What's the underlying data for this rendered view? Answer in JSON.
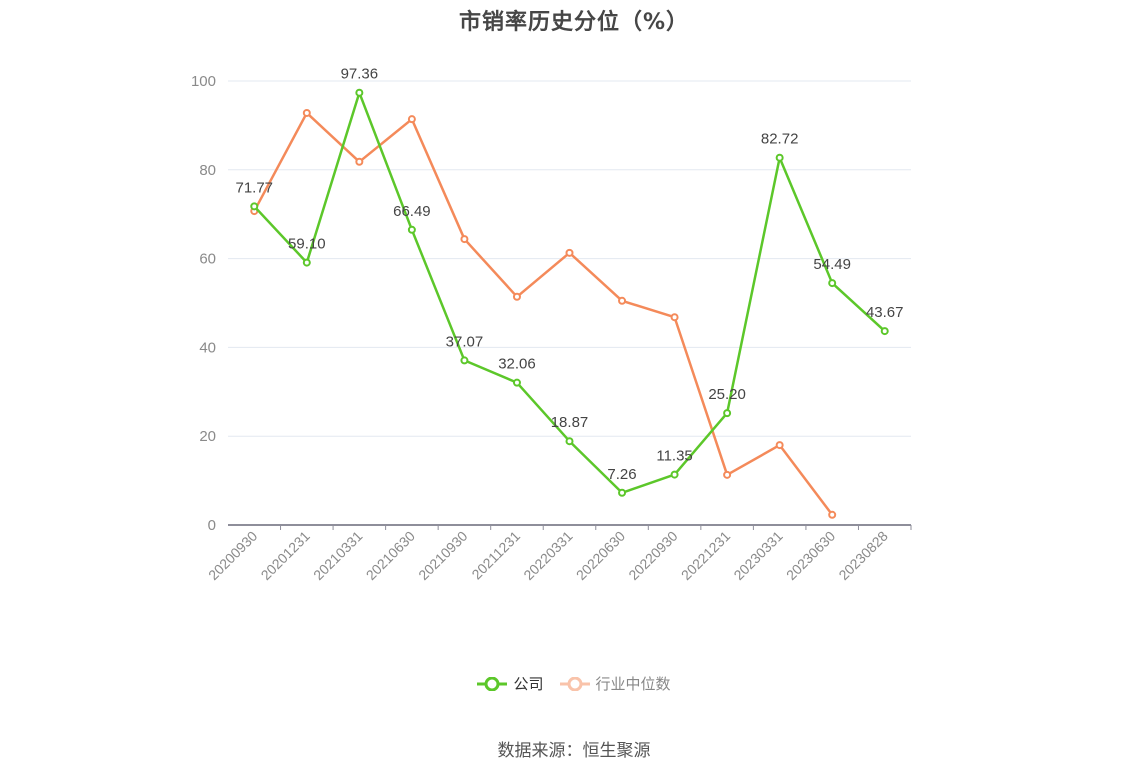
{
  "title": "市销率历史分位（%）",
  "source": "数据来源：恒生聚源",
  "legend": [
    {
      "label": "公司",
      "color": "#5cc72a",
      "icon": "circle-line-icon"
    },
    {
      "label": "行业中位数",
      "color": "#f48a5a",
      "icon": "circle-line-icon"
    }
  ],
  "chart_data": {
    "type": "line",
    "title": "市销率历史分位（%）",
    "xlabel": "",
    "ylabel": "",
    "ylim": [
      0,
      100
    ],
    "yticks": [
      0,
      20,
      40,
      60,
      80,
      100
    ],
    "grid": true,
    "legend_position": "bottom",
    "categories": [
      "20200930",
      "20201231",
      "20210331",
      "20210630",
      "20210930",
      "20211231",
      "20220331",
      "20220630",
      "20220930",
      "20221231",
      "20230331",
      "20230630",
      "20230828"
    ],
    "series": [
      {
        "name": "公司",
        "color": "#5cc72a",
        "show_labels": true,
        "values": [
          71.77,
          59.1,
          97.36,
          66.49,
          37.07,
          32.06,
          18.87,
          7.26,
          11.35,
          25.2,
          82.72,
          54.49,
          43.67
        ],
        "labels": [
          "71.77",
          "59.10",
          "97.36",
          "66.49",
          "37.07",
          "32.06",
          "18.87",
          "7.26",
          "11.35",
          "25.20",
          "82.72",
          "54.49",
          "43.67"
        ]
      },
      {
        "name": "行业中位数",
        "color": "#f48a5a",
        "show_labels": false,
        "values": [
          70.7,
          92.8,
          81.8,
          91.4,
          64.4,
          51.4,
          61.3,
          50.5,
          46.8,
          11.3,
          18.0,
          2.3,
          null
        ]
      }
    ]
  }
}
